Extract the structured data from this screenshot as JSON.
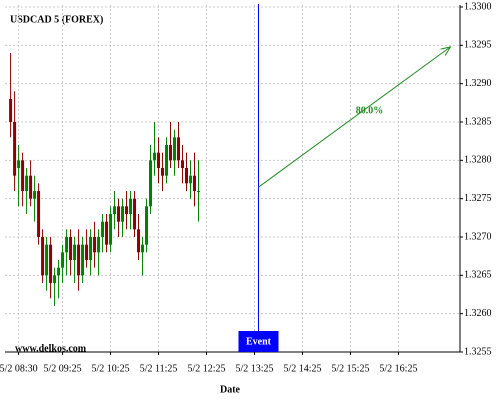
{
  "chart_data": {
    "type": "candlestick",
    "title": "USDCAD 5 (FOREX)",
    "watermark": "www.delkos.com",
    "x_label": "Date",
    "up_color": "#008000",
    "down_color": "#8b0000",
    "grid": true,
    "x": [
      "5/2 08:20",
      "5/2 08:25",
      "5/2 08:30",
      "5/2 08:35",
      "5/2 08:40",
      "5/2 08:45",
      "5/2 08:50",
      "5/2 08:55",
      "5/2 09:00",
      "5/2 09:05",
      "5/2 09:10",
      "5/2 09:15",
      "5/2 09:20",
      "5/2 09:25",
      "5/2 09:30",
      "5/2 09:35",
      "5/2 09:40",
      "5/2 09:45",
      "5/2 09:50",
      "5/2 09:55",
      "5/2 10:00",
      "5/2 10:05",
      "5/2 10:10",
      "5/2 10:15",
      "5/2 10:20",
      "5/2 10:25",
      "5/2 10:30",
      "5/2 10:35",
      "5/2 10:40",
      "5/2 10:45",
      "5/2 10:50",
      "5/2 10:55",
      "5/2 11:00",
      "5/2 11:05",
      "5/2 11:10",
      "5/2 11:15",
      "5/2 11:20",
      "5/2 11:25",
      "5/2 11:30",
      "5/2 11:35",
      "5/2 11:40",
      "5/2 11:45",
      "5/2 11:50",
      "5/2 11:55",
      "5/2 12:00",
      "5/2 12:05",
      "5/2 12:10",
      "5/2 12:15"
    ],
    "open": [
      1.3288,
      1.3285,
      1.3279,
      1.328,
      1.3276,
      1.3278,
      1.3275,
      1.3276,
      1.327,
      1.3265,
      1.3269,
      1.3264,
      1.3265,
      1.3266,
      1.3268,
      1.327,
      1.3267,
      1.3269,
      1.3265,
      1.3269,
      1.3267,
      1.327,
      1.3268,
      1.327,
      1.3272,
      1.3269,
      1.3273,
      1.3274,
      1.3272,
      1.3274,
      1.3273,
      1.3275,
      1.3271,
      1.3268,
      1.3269,
      1.3274,
      1.328,
      1.3281,
      1.3279,
      1.3278,
      1.3282,
      1.328,
      1.3283,
      1.328,
      1.3279,
      1.3277,
      1.3278,
      1.3276
    ],
    "high": [
      1.3294,
      1.3289,
      1.3282,
      1.3281,
      1.3279,
      1.328,
      1.3278,
      1.3277,
      1.3271,
      1.327,
      1.327,
      1.3266,
      1.3267,
      1.3269,
      1.3271,
      1.3271,
      1.327,
      1.3271,
      1.327,
      1.3271,
      1.3271,
      1.3272,
      1.3271,
      1.3273,
      1.3273,
      1.3274,
      1.3276,
      1.3275,
      1.3275,
      1.3276,
      1.3276,
      1.3276,
      1.3273,
      1.327,
      1.3275,
      1.3282,
      1.3285,
      1.3283,
      1.3281,
      1.3283,
      1.3285,
      1.3284,
      1.3285,
      1.3282,
      1.3281,
      1.328,
      1.3281,
      1.328
    ],
    "low": [
      1.3283,
      1.3276,
      1.3274,
      1.3274,
      1.3273,
      1.3274,
      1.3272,
      1.3269,
      1.3264,
      1.3263,
      1.3262,
      1.3261,
      1.3262,
      1.3264,
      1.3265,
      1.3265,
      1.3264,
      1.3263,
      1.3264,
      1.3266,
      1.3265,
      1.3266,
      1.3265,
      1.3268,
      1.3268,
      1.3268,
      1.3271,
      1.327,
      1.327,
      1.3271,
      1.3271,
      1.327,
      1.3267,
      1.3265,
      1.3268,
      1.3273,
      1.3278,
      1.3277,
      1.3276,
      1.3277,
      1.3279,
      1.3278,
      1.3279,
      1.3277,
      1.3276,
      1.3275,
      1.3274,
      1.3272
    ],
    "close": [
      1.3285,
      1.3278,
      1.328,
      1.3276,
      1.3278,
      1.3275,
      1.3276,
      1.327,
      1.3265,
      1.3269,
      1.3264,
      1.3265,
      1.3266,
      1.3268,
      1.327,
      1.3267,
      1.3269,
      1.3265,
      1.3269,
      1.3267,
      1.327,
      1.3268,
      1.327,
      1.3272,
      1.3269,
      1.3273,
      1.3274,
      1.3272,
      1.3274,
      1.3273,
      1.3275,
      1.3271,
      1.3268,
      1.3269,
      1.3274,
      1.328,
      1.3281,
      1.3279,
      1.3278,
      1.3282,
      1.328,
      1.3283,
      1.328,
      1.3279,
      1.3277,
      1.3278,
      1.3276,
      1.3276
    ],
    "xlim": [
      "5/2 08:13",
      "5/2 17:42"
    ],
    "xticks": [
      "5/2 08:30",
      "5/2 09:25",
      "5/2 10:25",
      "5/2 11:25",
      "5/2 12:25",
      "5/2 13:25",
      "5/2 14:25",
      "5/2 15:25",
      "5/2 16:25"
    ],
    "ylim": [
      1.3255,
      1.33
    ],
    "yticks": [
      {
        "value": 1.3255,
        "label": "1.3255"
      },
      {
        "value": 1.326,
        "label": "1.3260"
      },
      {
        "value": 1.3265,
        "label": "1.3265"
      },
      {
        "value": 1.327,
        "label": "1.3270"
      },
      {
        "value": 1.3275,
        "label": "1.3275"
      },
      {
        "value": 1.328,
        "label": "1.3280"
      },
      {
        "value": 1.3285,
        "label": "1.3285"
      },
      {
        "value": 1.329,
        "label": "1.3290"
      },
      {
        "value": 1.3295,
        "label": "1.3295"
      },
      {
        "value": 1.33,
        "label": "1.3300"
      }
    ],
    "event": {
      "label": "Event",
      "x": "5/2 13:30",
      "color": "#0000ff"
    },
    "forecast": {
      "x": [
        "5/2 13:30",
        "5/2 17:30"
      ],
      "values": [
        1.32765,
        1.32948
      ],
      "label": "80.0%",
      "color": "#228b22"
    }
  }
}
